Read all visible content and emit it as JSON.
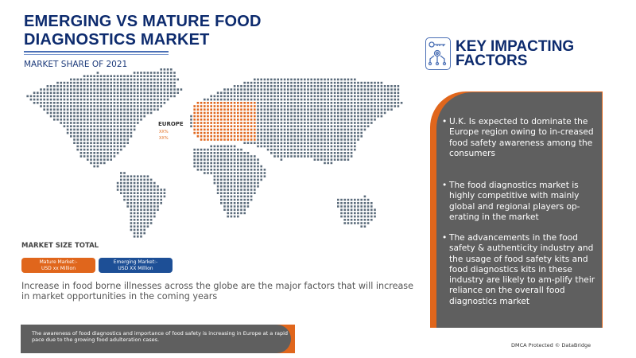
{
  "header": {
    "title": "EMERGING VS MATURE FOOD DIAGNOSTICS MARKET",
    "subtitle": "MARKET SHARE OF 2021"
  },
  "map": {
    "region_label": "EUROPE",
    "values": [
      "XX%",
      "XX%"
    ],
    "highlight_color": "#e0661c",
    "dot_color": "#5a6a7a"
  },
  "market_size": {
    "title": "MARKET SIZE TOTAL",
    "mature": {
      "line1": "Mature Market:-",
      "line2": "USD xx Million",
      "color": "#e0661c"
    },
    "emerging": {
      "line1": "Emerging Market:-",
      "line2": "USD XX Million",
      "color": "#1d4f96"
    }
  },
  "main_statement": "Increase in food borne illnesses across the globe are the major factors that will increase in market opportunities in the coming years",
  "footer_note": "The awareness of food diagnostics and importance of food safety is increasing in Europe at a rapid pace due to the growing food adulteration cases.",
  "factors": {
    "icon": "key-gear-network-icon",
    "title_line1": "KEY IMPACTING",
    "title_line2": "FACTORS",
    "items": [
      "U.K. Is expected to dominate the Europe region owing to in-creased food safety awareness among the consumers",
      "The food diagnostics market is highly competitive with mainly global and regional players op-erating in the market",
      "The advancements in the food safety & authenticity industry and the usage of food safety kits and food diagnostics kits in these industry are likely to am-plify their reliance on the overall food diagnostics market"
    ]
  },
  "copyright": "DMCA Protected © DataBridge"
}
